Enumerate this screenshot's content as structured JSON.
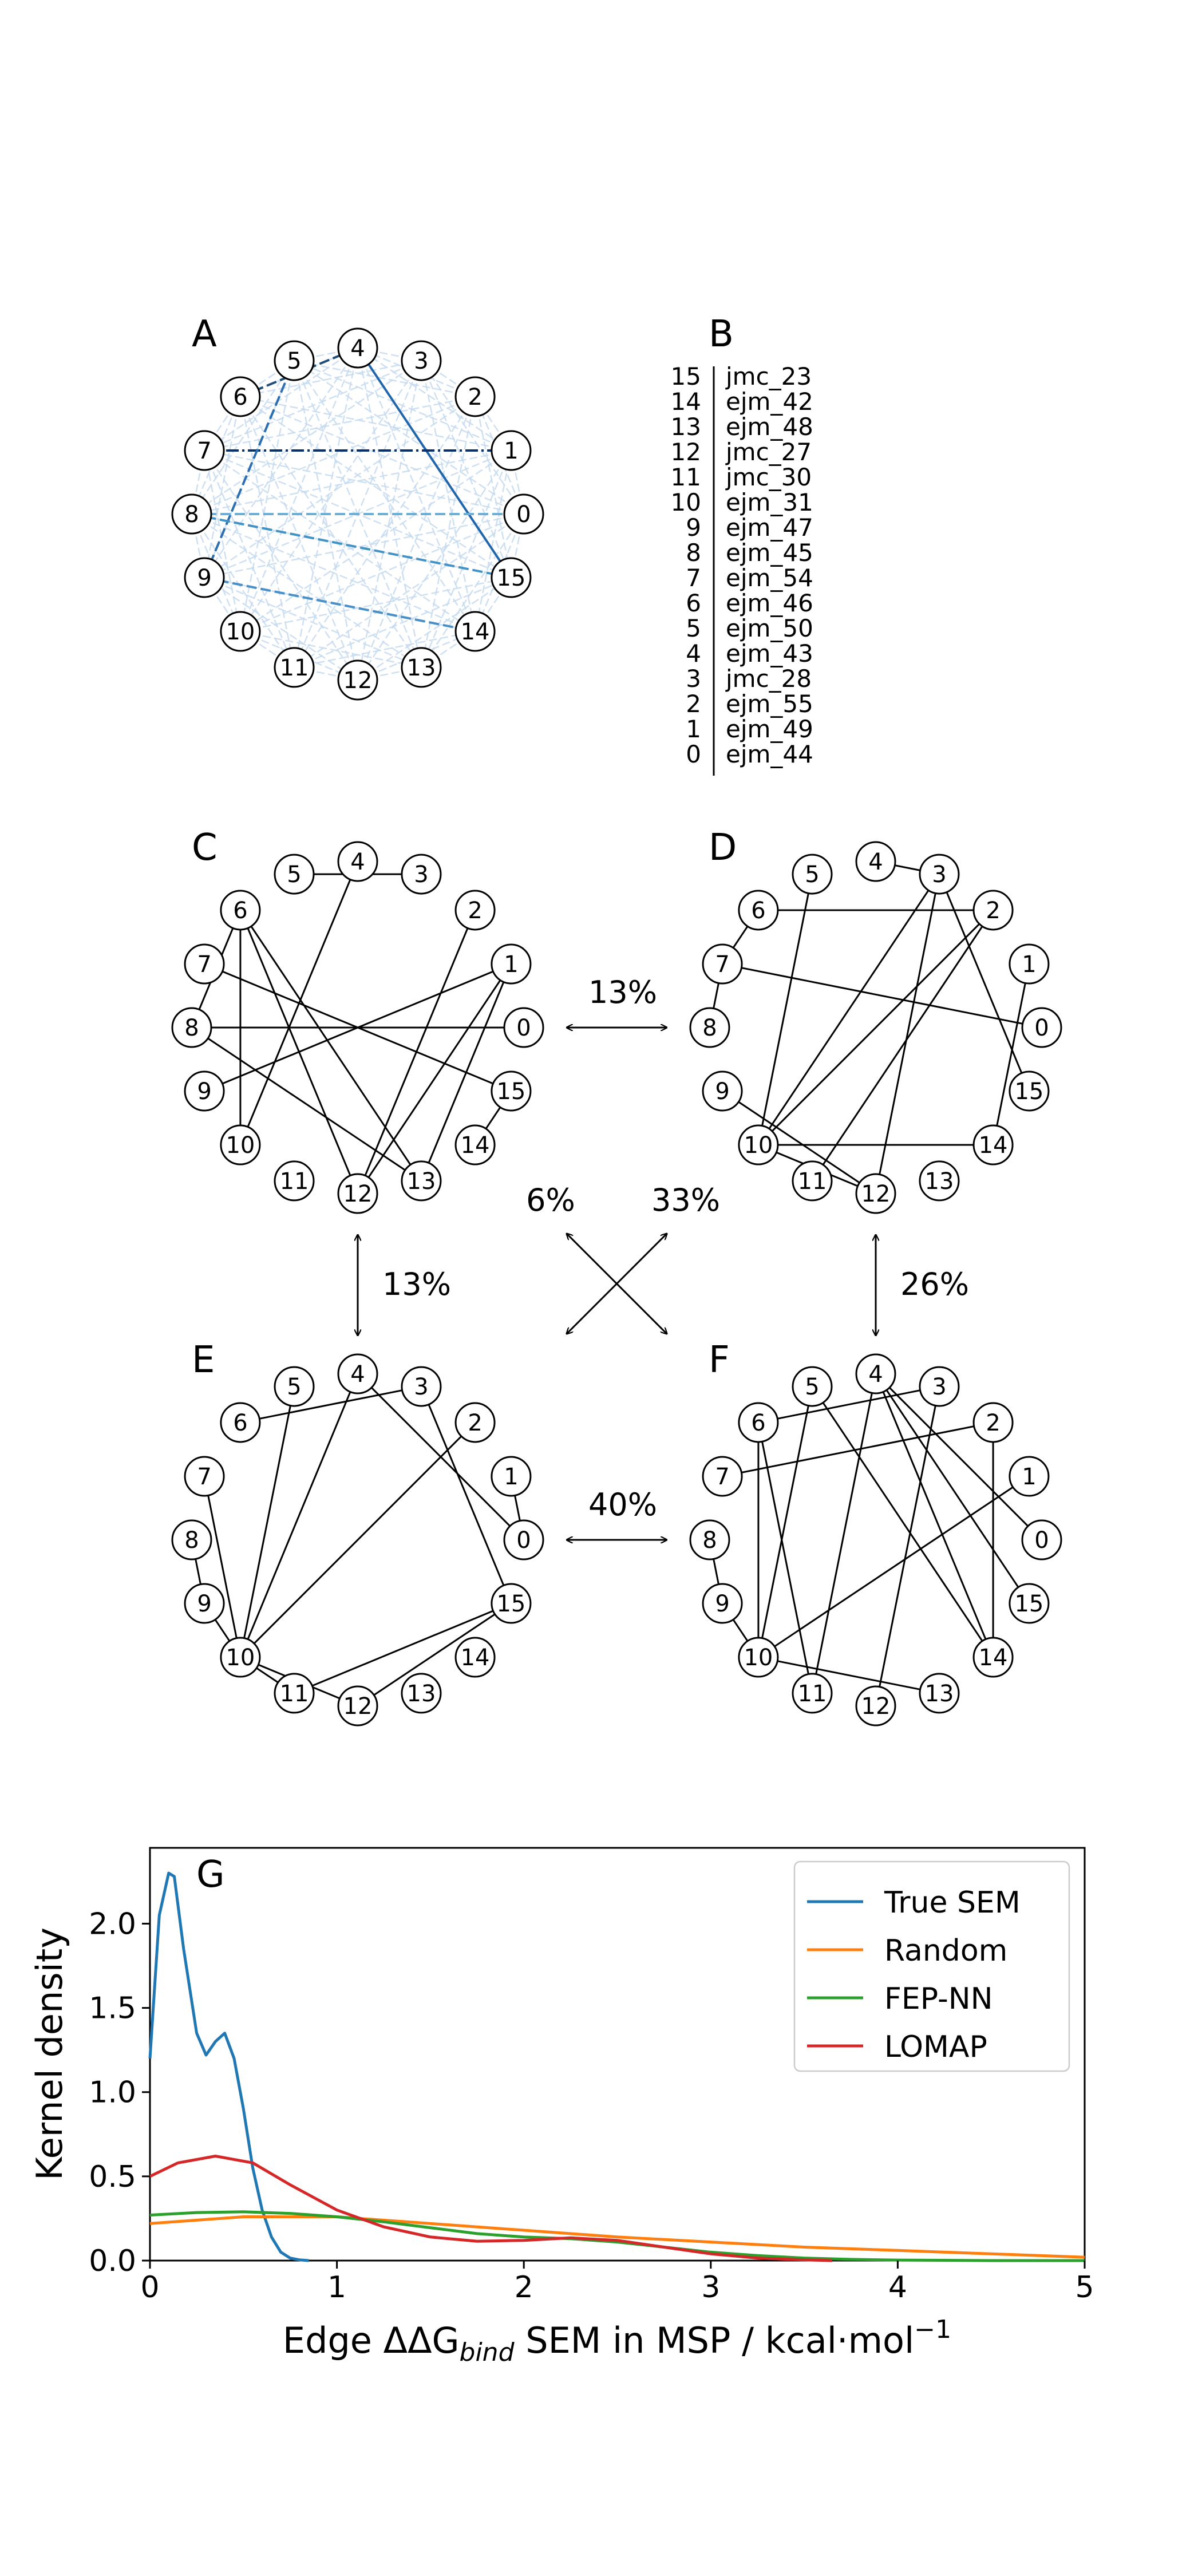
{
  "panels": {
    "A": "A",
    "B": "B",
    "C": "C",
    "D": "D",
    "E": "E",
    "F": "F",
    "G": "G"
  },
  "ligand_table": [
    {
      "index": "15",
      "name": "jmc_23"
    },
    {
      "index": "14",
      "name": "ejm_42"
    },
    {
      "index": "13",
      "name": "ejm_48"
    },
    {
      "index": "12",
      "name": "jmc_27"
    },
    {
      "index": "11",
      "name": "jmc_30"
    },
    {
      "index": "10",
      "name": "ejm_31"
    },
    {
      "index": "9",
      "name": "ejm_47"
    },
    {
      "index": "8",
      "name": "ejm_45"
    },
    {
      "index": "7",
      "name": "ejm_54"
    },
    {
      "index": "6",
      "name": "ejm_46"
    },
    {
      "index": "5",
      "name": "ejm_50"
    },
    {
      "index": "4",
      "name": "ejm_43"
    },
    {
      "index": "3",
      "name": "jmc_28"
    },
    {
      "index": "2",
      "name": "ejm_55"
    },
    {
      "index": "1",
      "name": "ejm_49"
    },
    {
      "index": "0",
      "name": "ejm_44"
    }
  ],
  "node_labels": [
    "0",
    "1",
    "2",
    "3",
    "4",
    "5",
    "6",
    "7",
    "8",
    "9",
    "10",
    "11",
    "12",
    "13",
    "14",
    "15"
  ],
  "graphs": {
    "C": [
      [
        0,
        8
      ],
      [
        1,
        9
      ],
      [
        1,
        12
      ],
      [
        1,
        13
      ],
      [
        2,
        12
      ],
      [
        3,
        5
      ],
      [
        4,
        10
      ],
      [
        6,
        10
      ],
      [
        6,
        12
      ],
      [
        6,
        13
      ],
      [
        6,
        8
      ],
      [
        7,
        15
      ],
      [
        8,
        13
      ],
      [
        14,
        15
      ]
    ],
    "D": [
      [
        0,
        7
      ],
      [
        2,
        6
      ],
      [
        2,
        10
      ],
      [
        2,
        11
      ],
      [
        3,
        10
      ],
      [
        3,
        12
      ],
      [
        3,
        15
      ],
      [
        4,
        3
      ],
      [
        5,
        10
      ],
      [
        6,
        7
      ],
      [
        7,
        8
      ],
      [
        9,
        12
      ],
      [
        10,
        14
      ],
      [
        10,
        12
      ],
      [
        1,
        14
      ]
    ],
    "E": [
      [
        0,
        4
      ],
      [
        0,
        1
      ],
      [
        2,
        10
      ],
      [
        3,
        15
      ],
      [
        3,
        6
      ],
      [
        4,
        10
      ],
      [
        5,
        10
      ],
      [
        7,
        10
      ],
      [
        8,
        9
      ],
      [
        9,
        10
      ],
      [
        10,
        12
      ],
      [
        10,
        11
      ],
      [
        11,
        15
      ],
      [
        12,
        15
      ]
    ],
    "F": [
      [
        0,
        4
      ],
      [
        1,
        10
      ],
      [
        2,
        7
      ],
      [
        2,
        14
      ],
      [
        3,
        12
      ],
      [
        3,
        6
      ],
      [
        4,
        11
      ],
      [
        4,
        15
      ],
      [
        5,
        10
      ],
      [
        5,
        14
      ],
      [
        6,
        10
      ],
      [
        6,
        11
      ],
      [
        8,
        9
      ],
      [
        9,
        10
      ],
      [
        10,
        13
      ],
      [
        4,
        14
      ]
    ]
  },
  "graph_A": {
    "strong_edges": [
      {
        "from": 4,
        "to": 15,
        "color": "#2166ac"
      },
      {
        "from": 7,
        "to": 1,
        "color": "#08306b"
      },
      {
        "from": 9,
        "to": 5,
        "color": "#2c6fb0"
      },
      {
        "from": 8,
        "to": 0,
        "color": "#6baed6"
      },
      {
        "from": 9,
        "to": 14,
        "color": "#4a90c8"
      },
      {
        "from": 8,
        "to": 15,
        "color": "#4292c6"
      },
      {
        "from": 6,
        "to": 4,
        "color": "#1f4e79"
      }
    ],
    "weak_color": "#c6dbef"
  },
  "similarities": {
    "C_D": "13%",
    "C_E": "13%",
    "E_F": "40%",
    "D_F": "26%",
    "C_F": "6%",
    "D_E": "33%"
  },
  "chart_data": {
    "type": "line",
    "title": "",
    "panel_label": "G",
    "xlabel_parts": {
      "pre": "Edge ΔΔG",
      "sub": "bind",
      "post": " SEM in MSP / kcal·mol",
      "sup": "−1"
    },
    "ylabel": "Kernel density",
    "xlim": [
      0,
      5
    ],
    "ylim": [
      0,
      2.45
    ],
    "xticks": [
      "0",
      "1",
      "2",
      "3",
      "4",
      "5"
    ],
    "yticks": [
      "0.0",
      "0.5",
      "1.0",
      "1.5",
      "2.0"
    ],
    "legend_position": "top-right",
    "series": [
      {
        "name": "True SEM",
        "color": "#1f77b4",
        "x": [
          0,
          0.05,
          0.1,
          0.13,
          0.18,
          0.25,
          0.3,
          0.35,
          0.4,
          0.45,
          0.5,
          0.55,
          0.6,
          0.65,
          0.7,
          0.75,
          0.8,
          0.85
        ],
        "y": [
          1.2,
          2.05,
          2.3,
          2.28,
          1.85,
          1.35,
          1.22,
          1.3,
          1.35,
          1.2,
          0.9,
          0.55,
          0.3,
          0.14,
          0.05,
          0.015,
          0.004,
          0.0
        ]
      },
      {
        "name": "Random",
        "color": "#ff7f0e",
        "x": [
          0,
          0.5,
          1,
          1.5,
          2,
          2.5,
          3,
          3.5,
          4,
          4.5,
          5
        ],
        "y": [
          0.22,
          0.26,
          0.26,
          0.22,
          0.18,
          0.14,
          0.11,
          0.08,
          0.06,
          0.04,
          0.02
        ]
      },
      {
        "name": "FEP-NN",
        "color": "#2ca02c",
        "x": [
          0,
          0.25,
          0.5,
          0.75,
          1,
          1.25,
          1.5,
          1.75,
          2,
          2.25,
          2.5,
          2.75,
          3,
          3.25,
          3.5,
          3.75,
          4,
          4.5,
          5
        ],
        "y": [
          0.27,
          0.285,
          0.29,
          0.28,
          0.26,
          0.23,
          0.195,
          0.16,
          0.14,
          0.13,
          0.11,
          0.08,
          0.05,
          0.03,
          0.015,
          0.007,
          0.003,
          0.0,
          0.0
        ]
      },
      {
        "name": "LOMAP",
        "color": "#d62728",
        "x": [
          0,
          0.15,
          0.35,
          0.55,
          0.75,
          1,
          1.25,
          1.5,
          1.75,
          2,
          2.25,
          2.5,
          2.75,
          3,
          3.25,
          3.5,
          3.65
        ],
        "y": [
          0.5,
          0.58,
          0.62,
          0.58,
          0.45,
          0.3,
          0.2,
          0.14,
          0.115,
          0.12,
          0.135,
          0.12,
          0.08,
          0.04,
          0.015,
          0.004,
          0.0
        ]
      }
    ]
  }
}
